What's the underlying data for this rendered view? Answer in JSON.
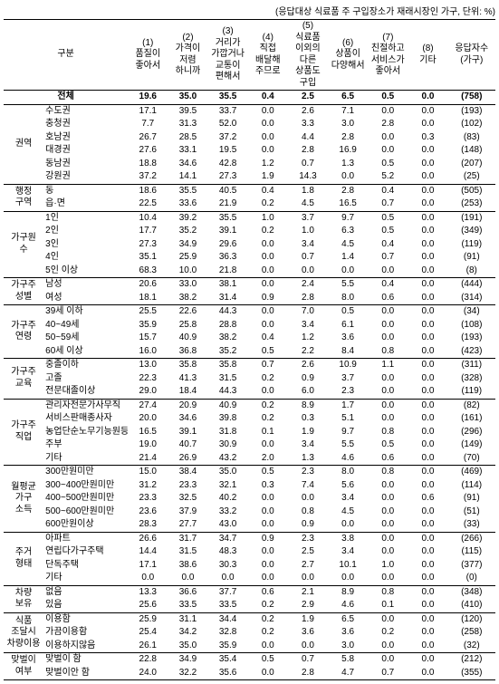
{
  "note": "(응답대상 식료품 주 구입장소가 재래시장인 가구, 단위: %)",
  "header": {
    "rowLabel": "구분",
    "cols": [
      {
        "n": "(1)",
        "t": "품질이\n좋아서"
      },
      {
        "n": "(2)",
        "t": "가격이\n저렴\n하니까"
      },
      {
        "n": "(3)",
        "t": "거리가\n가깝거나\n교통이\n편해서"
      },
      {
        "n": "(4)",
        "t": "직접\n배달해\n주므로"
      },
      {
        "n": "(5)",
        "t": "식료품\n이외의\n다른\n상품도\n구입"
      },
      {
        "n": "(6)",
        "t": "상품이\n다양해서"
      },
      {
        "n": "(7)",
        "t": "친절하고\n서비스가\n좋아서"
      },
      {
        "n": "(8)",
        "t": "기타"
      }
    ],
    "respLabel": "응답자수\n(가구)"
  },
  "total": {
    "label": "전체",
    "v": [
      "19.6",
      "35.0",
      "35.5",
      "0.4",
      "2.5",
      "6.5",
      "0.5",
      "0.0"
    ],
    "r": "(758)"
  },
  "groups": [
    {
      "name": "권역",
      "rows": [
        {
          "l": "수도권",
          "v": [
            "17.1",
            "39.5",
            "33.7",
            "0.0",
            "2.6",
            "7.1",
            "0.0",
            "0.0"
          ],
          "r": "(193)"
        },
        {
          "l": "충청권",
          "v": [
            "7.7",
            "31.3",
            "52.0",
            "0.0",
            "3.3",
            "3.0",
            "2.8",
            "0.0"
          ],
          "r": "(102)"
        },
        {
          "l": "호남권",
          "v": [
            "26.7",
            "28.5",
            "37.2",
            "0.0",
            "4.4",
            "2.8",
            "0.0",
            "0.3"
          ],
          "r": "(83)"
        },
        {
          "l": "대경권",
          "v": [
            "27.6",
            "33.1",
            "19.5",
            "0.0",
            "2.8",
            "16.9",
            "0.0",
            "0.0"
          ],
          "r": "(148)"
        },
        {
          "l": "동남권",
          "v": [
            "18.8",
            "34.6",
            "42.8",
            "1.2",
            "0.7",
            "1.3",
            "0.5",
            "0.0"
          ],
          "r": "(207)"
        },
        {
          "l": "강원권",
          "v": [
            "37.2",
            "14.1",
            "27.3",
            "1.9",
            "14.3",
            "0.0",
            "5.2",
            "0.0"
          ],
          "r": "(25)"
        }
      ]
    },
    {
      "name": "행정\n구역",
      "rows": [
        {
          "l": "동",
          "v": [
            "18.6",
            "35.5",
            "40.5",
            "0.4",
            "1.8",
            "2.8",
            "0.4",
            "0.0"
          ],
          "r": "(505)"
        },
        {
          "l": "읍·면",
          "v": [
            "22.5",
            "33.6",
            "21.9",
            "0.2",
            "4.5",
            "16.5",
            "0.7",
            "0.0"
          ],
          "r": "(253)"
        }
      ]
    },
    {
      "name": "가구원\n수",
      "rows": [
        {
          "l": "1인",
          "v": [
            "10.4",
            "39.2",
            "35.5",
            "1.0",
            "3.7",
            "9.7",
            "0.5",
            "0.0"
          ],
          "r": "(191)"
        },
        {
          "l": "2인",
          "v": [
            "17.7",
            "35.2",
            "39.1",
            "0.2",
            "1.0",
            "6.3",
            "0.5",
            "0.0"
          ],
          "r": "(349)"
        },
        {
          "l": "3인",
          "v": [
            "27.3",
            "34.9",
            "29.6",
            "0.0",
            "3.4",
            "4.5",
            "0.4",
            "0.0"
          ],
          "r": "(119)"
        },
        {
          "l": "4인",
          "v": [
            "35.1",
            "25.9",
            "36.3",
            "0.0",
            "0.7",
            "1.4",
            "0.7",
            "0.0"
          ],
          "r": "(91)"
        },
        {
          "l": "5인 이상",
          "v": [
            "68.3",
            "10.0",
            "21.8",
            "0.0",
            "0.0",
            "0.0",
            "0.0",
            "0.0"
          ],
          "r": "(8)"
        }
      ]
    },
    {
      "name": "가구주\n성별",
      "rows": [
        {
          "l": "남성",
          "v": [
            "20.6",
            "33.0",
            "38.1",
            "0.0",
            "2.4",
            "5.5",
            "0.4",
            "0.0"
          ],
          "r": "(444)"
        },
        {
          "l": "여성",
          "v": [
            "18.1",
            "38.2",
            "31.4",
            "0.9",
            "2.8",
            "8.0",
            "0.6",
            "0.0"
          ],
          "r": "(314)"
        }
      ]
    },
    {
      "name": "가구주\n연령",
      "rows": [
        {
          "l": "39세 이하",
          "v": [
            "25.5",
            "22.6",
            "44.3",
            "0.0",
            "7.0",
            "0.5",
            "0.0",
            "0.0"
          ],
          "r": "(34)"
        },
        {
          "l": "40~49세",
          "v": [
            "35.9",
            "25.8",
            "28.8",
            "0.0",
            "3.4",
            "6.1",
            "0.0",
            "0.0"
          ],
          "r": "(108)"
        },
        {
          "l": "50~59세",
          "v": [
            "15.7",
            "40.9",
            "38.2",
            "0.4",
            "1.2",
            "3.6",
            "0.0",
            "0.0"
          ],
          "r": "(193)"
        },
        {
          "l": "60세 이상",
          "v": [
            "16.0",
            "36.8",
            "35.2",
            "0.5",
            "2.2",
            "8.4",
            "0.8",
            "0.0"
          ],
          "r": "(423)"
        }
      ]
    },
    {
      "name": "가구주\n교육",
      "rows": [
        {
          "l": "중졸이하",
          "v": [
            "13.0",
            "35.8",
            "35.8",
            "0.7",
            "2.6",
            "10.9",
            "1.1",
            "0.0"
          ],
          "r": "(311)"
        },
        {
          "l": "고졸",
          "v": [
            "22.3",
            "41.3",
            "31.5",
            "0.2",
            "0.9",
            "3.7",
            "0.0",
            "0.0"
          ],
          "r": "(328)"
        },
        {
          "l": "전문대졸이상",
          "v": [
            "29.0",
            "18.4",
            "44.3",
            "0.0",
            "6.0",
            "2.3",
            "0.0",
            "0.0"
          ],
          "r": "(119)"
        }
      ]
    },
    {
      "name": "가구주\n직업",
      "rows": [
        {
          "l": "관리자전문가사무직",
          "v": [
            "27.4",
            "20.9",
            "40.9",
            "0.2",
            "8.9",
            "1.7",
            "0.0",
            "0.0"
          ],
          "r": "(82)"
        },
        {
          "l": "서비스판매종사자",
          "v": [
            "20.0",
            "34.6",
            "39.8",
            "0.2",
            "0.3",
            "5.1",
            "0.0",
            "0.0"
          ],
          "r": "(161)"
        },
        {
          "l": "농업단순노무기능원등",
          "v": [
            "16.5",
            "39.1",
            "31.8",
            "0.1",
            "1.9",
            "9.7",
            "0.8",
            "0.0"
          ],
          "r": "(296)"
        },
        {
          "l": "주부",
          "v": [
            "19.0",
            "40.7",
            "30.9",
            "0.0",
            "3.4",
            "5.5",
            "0.5",
            "0.0"
          ],
          "r": "(149)"
        },
        {
          "l": "기타",
          "v": [
            "21.4",
            "26.9",
            "43.2",
            "2.0",
            "1.3",
            "4.6",
            "0.6",
            "0.0"
          ],
          "r": "(70)"
        }
      ]
    },
    {
      "name": "월평균\n가구\n소득",
      "rows": [
        {
          "l": "300만원미만",
          "v": [
            "15.0",
            "38.4",
            "35.0",
            "0.5",
            "2.3",
            "8.0",
            "0.8",
            "0.0"
          ],
          "r": "(469)"
        },
        {
          "l": "300~400만원미만",
          "v": [
            "31.2",
            "23.3",
            "32.1",
            "0.3",
            "7.4",
            "5.6",
            "0.0",
            "0.0"
          ],
          "r": "(114)"
        },
        {
          "l": "400~500만원미만",
          "v": [
            "23.3",
            "32.5",
            "40.2",
            "0.0",
            "0.0",
            "3.4",
            "0.0",
            "0.6"
          ],
          "r": "(91)"
        },
        {
          "l": "500~600만원미만",
          "v": [
            "23.6",
            "37.9",
            "33.2",
            "0.0",
            "0.8",
            "4.5",
            "0.0",
            "0.0"
          ],
          "r": "(51)"
        },
        {
          "l": "600만원이상",
          "v": [
            "28.3",
            "27.7",
            "43.0",
            "0.0",
            "0.9",
            "0.0",
            "0.0",
            "0.0"
          ],
          "r": "(33)"
        }
      ]
    },
    {
      "name": "주거\n형태",
      "rows": [
        {
          "l": "아파트",
          "v": [
            "26.6",
            "31.7",
            "34.7",
            "0.9",
            "2.3",
            "3.8",
            "0.0",
            "0.0"
          ],
          "r": "(266)"
        },
        {
          "l": "연립다가구주택",
          "v": [
            "14.4",
            "31.5",
            "48.3",
            "0.0",
            "2.5",
            "3.4",
            "0.0",
            "0.0"
          ],
          "r": "(115)"
        },
        {
          "l": "단독주택",
          "v": [
            "17.1",
            "38.6",
            "30.3",
            "0.0",
            "2.7",
            "10.1",
            "1.0",
            "0.0"
          ],
          "r": "(377)"
        },
        {
          "l": "기타",
          "v": [
            "0.0",
            "0.0",
            "0.0",
            "0.0",
            "0.0",
            "0.0",
            "0.0",
            "0.0"
          ],
          "r": "(0)"
        }
      ]
    },
    {
      "name": "차량\n보유",
      "rows": [
        {
          "l": "없음",
          "v": [
            "13.3",
            "36.6",
            "37.7",
            "0.6",
            "2.1",
            "8.9",
            "0.8",
            "0.0"
          ],
          "r": "(348)"
        },
        {
          "l": "있음",
          "v": [
            "25.6",
            "33.5",
            "33.5",
            "0.2",
            "2.9",
            "4.6",
            "0.1",
            "0.0"
          ],
          "r": "(410)"
        }
      ]
    },
    {
      "name": "식품\n조달시\n차량이용",
      "rows": [
        {
          "l": "이용함",
          "v": [
            "25.9",
            "31.1",
            "34.4",
            "0.2",
            "1.9",
            "6.5",
            "0.0",
            "0.0"
          ],
          "r": "(120)"
        },
        {
          "l": "가끔이용함",
          "v": [
            "25.4",
            "34.2",
            "32.8",
            "0.2",
            "3.6",
            "3.6",
            "0.2",
            "0.0"
          ],
          "r": "(258)"
        },
        {
          "l": "이용하지않음",
          "v": [
            "26.1",
            "35.0",
            "35.9",
            "0.0",
            "0.0",
            "3.0",
            "0.0",
            "0.0"
          ],
          "r": "(32)"
        }
      ]
    },
    {
      "name": "맞벌이\n여부",
      "rows": [
        {
          "l": "맞벌이 함",
          "v": [
            "22.8",
            "34.9",
            "35.4",
            "0.5",
            "0.7",
            "5.8",
            "0.0",
            "0.0"
          ],
          "r": "(212)"
        },
        {
          "l": "맞벌이안 함",
          "v": [
            "24.0",
            "32.2",
            "35.6",
            "0.0",
            "2.8",
            "4.7",
            "0.7",
            "0.0"
          ],
          "r": "(355)"
        }
      ]
    }
  ]
}
